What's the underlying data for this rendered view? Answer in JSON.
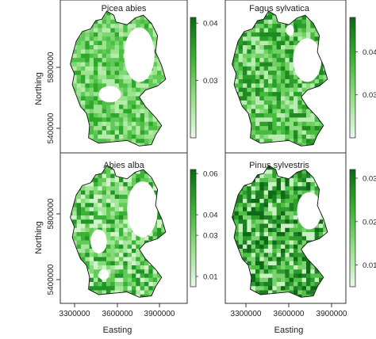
{
  "chart_data": {
    "type": "heatmap",
    "xlabel": "Easting",
    "ylabel": "Northing",
    "x_ticks": [
      "3300000",
      "3600000",
      "3900000"
    ],
    "y_ticks": [
      "5400000",
      "5800000"
    ],
    "grid": false,
    "palette": {
      "low": "#e8f8e4",
      "high": "#0a6a12"
    },
    "panels": [
      {
        "title": "Picea abies",
        "legend_ticks": [
          {
            "label": "0.03",
            "v": 0.03
          },
          {
            "label": "0.04",
            "v": 0.04
          }
        ],
        "range": [
          0.02,
          0.041
        ]
      },
      {
        "title": "Fagus sylvatica",
        "legend_ticks": [
          {
            "label": "0.03",
            "v": 0.03
          },
          {
            "label": "0.04",
            "v": 0.04
          }
        ],
        "range": [
          0.02,
          0.048
        ]
      },
      {
        "title": "Abies alba",
        "legend_ticks": [
          {
            "label": "0.01",
            "v": 0.01
          },
          {
            "label": "0.03",
            "v": 0.03
          },
          {
            "label": "0.04",
            "v": 0.04
          },
          {
            "label": "0.06",
            "v": 0.06
          }
        ],
        "range": [
          0.005,
          0.062
        ]
      },
      {
        "title": "Pinus sylvestris",
        "legend_ticks": [
          {
            "label": "0.01",
            "v": 0.01
          },
          {
            "label": "0.02",
            "v": 0.02
          },
          {
            "label": "0.03",
            "v": 0.03
          }
        ],
        "range": [
          0.005,
          0.032
        ]
      }
    ]
  }
}
